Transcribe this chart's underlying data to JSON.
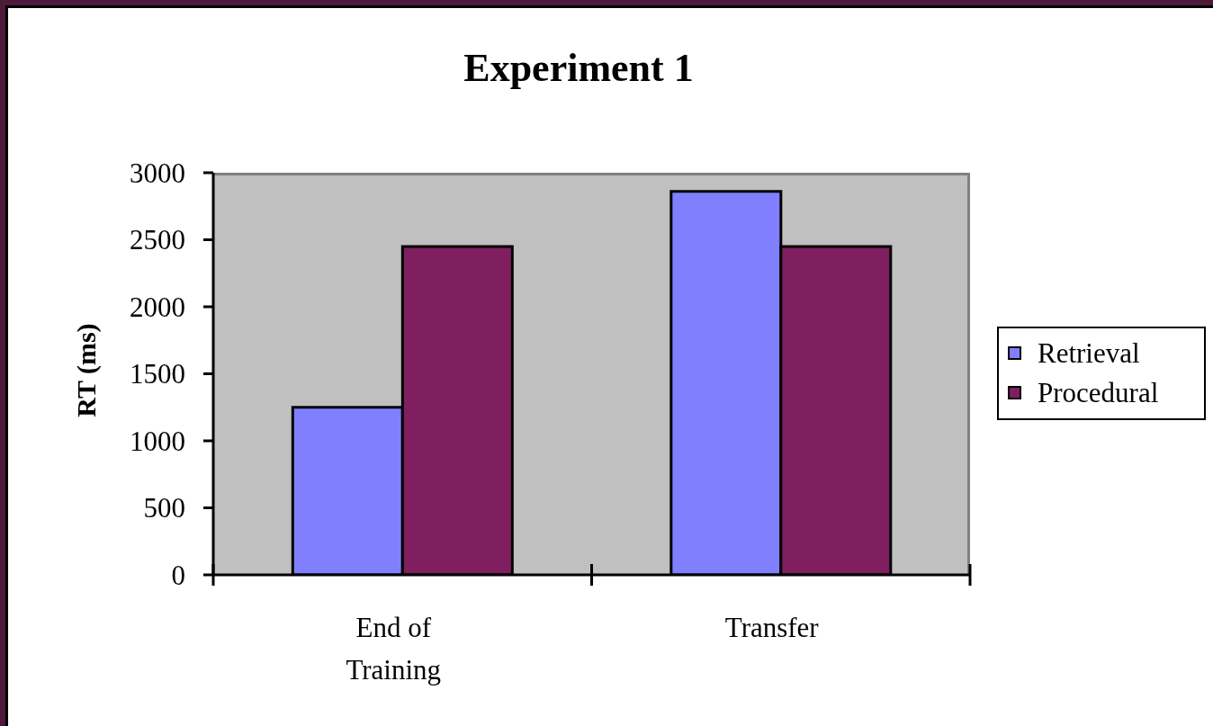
{
  "chart_data": {
    "type": "bar",
    "title": "Experiment 1",
    "ylabel": "RT (ms)",
    "categories": [
      "End of Training",
      "Transfer"
    ],
    "series": [
      {
        "name": "Retrieval",
        "color": "#8080ff",
        "values": [
          1250,
          2860
        ]
      },
      {
        "name": "Procedural",
        "color": "#7f1f5f",
        "values": [
          2450,
          2450
        ]
      }
    ],
    "ylim": [
      0,
      3000
    ],
    "yticks": [
      0,
      500,
      1000,
      1500,
      2000,
      2500,
      3000
    ],
    "legend": "right"
  }
}
